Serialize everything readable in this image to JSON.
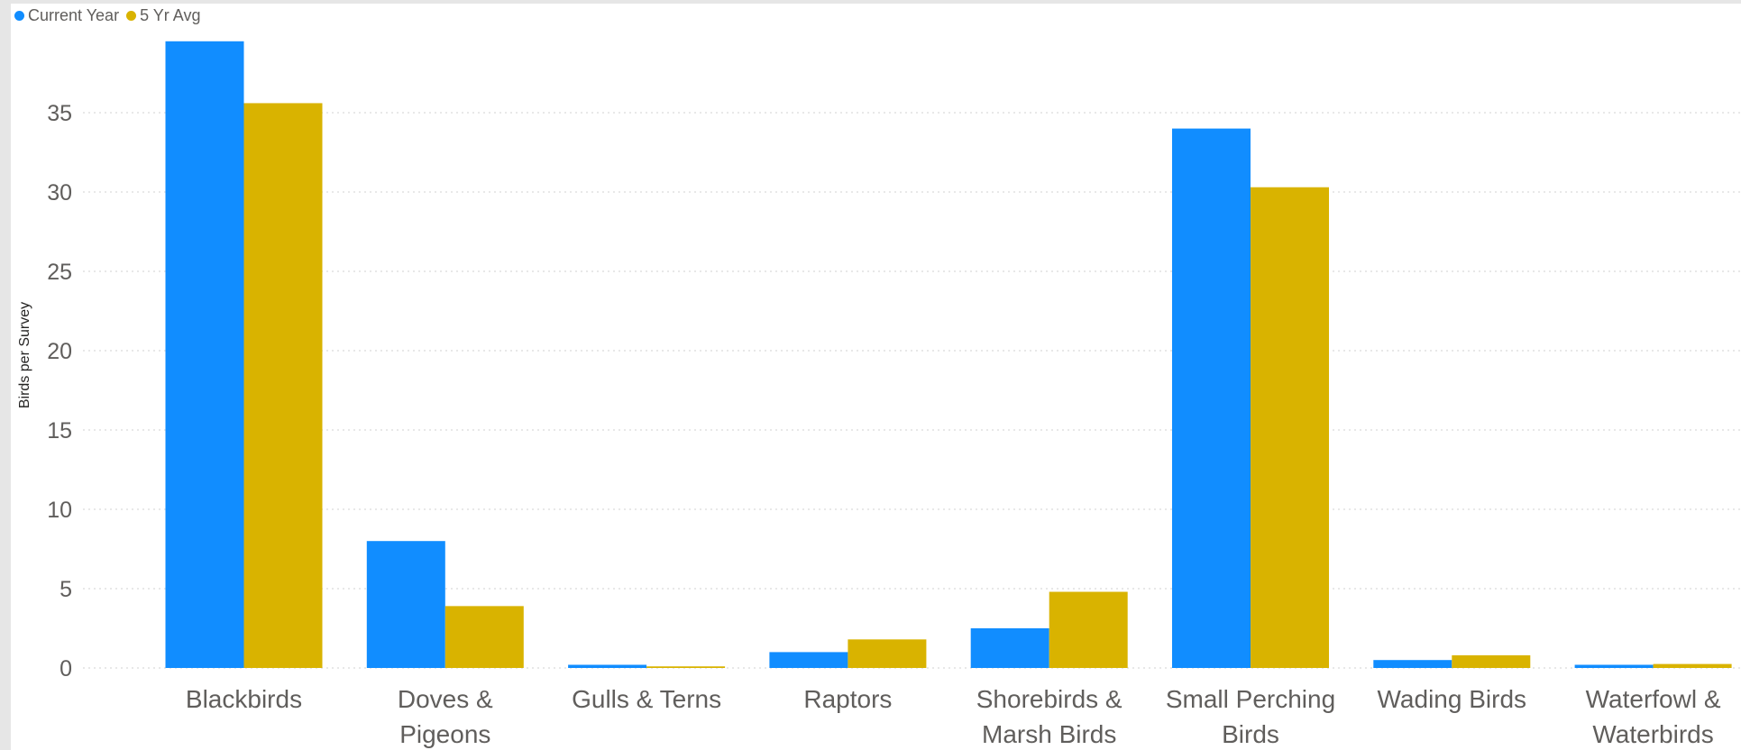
{
  "legend": {
    "items": [
      {
        "label": "Current Year",
        "color": "#118dff"
      },
      {
        "label": "5 Yr Avg",
        "color": "#d9b300"
      }
    ]
  },
  "chart_data": {
    "type": "bar",
    "ylabel": "Birds per Survey",
    "ylim": [
      0,
      40
    ],
    "yticks": [
      0,
      5,
      10,
      15,
      20,
      25,
      30,
      35
    ],
    "grid": true,
    "legend_position": "top-left",
    "categories": [
      [
        "Blackbirds"
      ],
      [
        "Doves &",
        "Pigeons"
      ],
      [
        "Gulls & Terns"
      ],
      [
        "Raptors"
      ],
      [
        "Shorebirds &",
        "Marsh Birds"
      ],
      [
        "Small Perching",
        "Birds"
      ],
      [
        "Wading Birds"
      ],
      [
        "Waterfowl &",
        "Waterbirds"
      ]
    ],
    "series": [
      {
        "name": "Current Year",
        "color": "#118dff",
        "values": [
          39.5,
          8.0,
          0.2,
          1.0,
          2.5,
          34.0,
          0.5,
          0.2
        ]
      },
      {
        "name": "5 Yr Avg",
        "color": "#d9b300",
        "values": [
          35.6,
          3.9,
          0.1,
          1.8,
          4.8,
          30.3,
          0.8,
          0.25
        ]
      }
    ]
  }
}
